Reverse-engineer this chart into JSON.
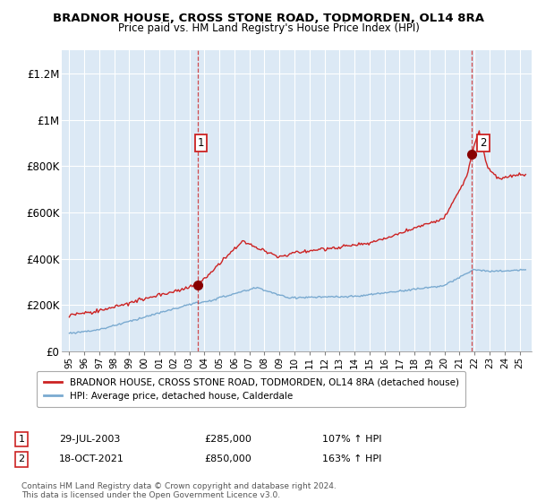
{
  "title": "BRADNOR HOUSE, CROSS STONE ROAD, TODMORDEN, OL14 8RA",
  "subtitle": "Price paid vs. HM Land Registry's House Price Index (HPI)",
  "legend_line1": "BRADNOR HOUSE, CROSS STONE ROAD, TODMORDEN, OL14 8RA (detached house)",
  "legend_line2": "HPI: Average price, detached house, Calderdale",
  "annotation1_date": "29-JUL-2003",
  "annotation1_price": "£285,000",
  "annotation1_hpi": "107% ↑ HPI",
  "annotation2_date": "18-OCT-2021",
  "annotation2_price": "£850,000",
  "annotation2_hpi": "163% ↑ HPI",
  "footer": "Contains HM Land Registry data © Crown copyright and database right 2024.\nThis data is licensed under the Open Government Licence v3.0.",
  "red_color": "#cc2222",
  "blue_color": "#7aaad0",
  "bg_color": "#dce9f5",
  "ylim_max": 1300000,
  "yticks": [
    0,
    200000,
    400000,
    600000,
    800000,
    1000000,
    1200000
  ],
  "ytick_labels": [
    "£0",
    "£200K",
    "£400K",
    "£600K",
    "£800K",
    "£1M",
    "£1.2M"
  ],
  "sale1_x": 2003.57,
  "sale1_y": 285000,
  "sale2_x": 2021.79,
  "sale2_y": 850000,
  "xlim": [
    1994.5,
    2025.8
  ]
}
